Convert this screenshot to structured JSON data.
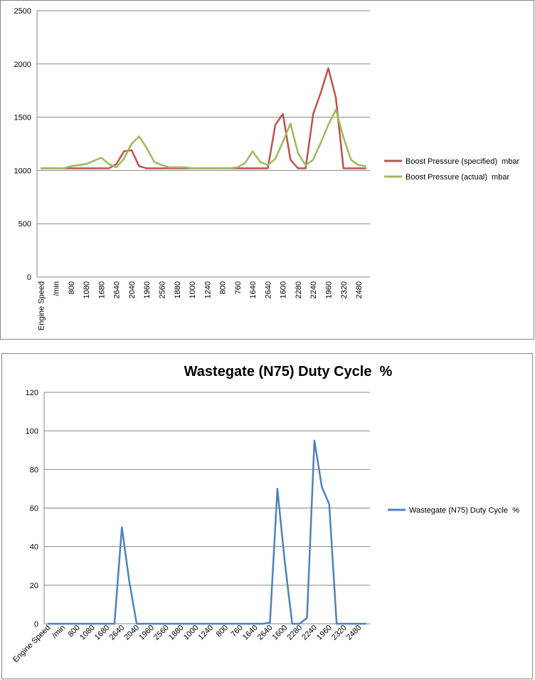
{
  "chart_data": [
    {
      "type": "line",
      "categories": [
        "Engine Speed",
        null,
        "/min",
        null,
        "800",
        null,
        "1080",
        null,
        "1680",
        null,
        "2640",
        null,
        "2040",
        null,
        "1960",
        null,
        "2560",
        null,
        "1880",
        null,
        "1000",
        null,
        "1240",
        null,
        "800",
        null,
        "760",
        null,
        "1640",
        null,
        "2640",
        null,
        "1600",
        null,
        "2280",
        null,
        "2240",
        null,
        "1960",
        null,
        "2320",
        null,
        "2480",
        null
      ],
      "series": [
        {
          "name": "Boost Pressure (specified)  mbar",
          "color": "#c0504d",
          "values": [
            1020,
            1020,
            1020,
            1020,
            1020,
            1020,
            1020,
            1020,
            1020,
            1020,
            1060,
            1180,
            1190,
            1040,
            1020,
            1020,
            1020,
            1020,
            1020,
            1020,
            1020,
            1020,
            1020,
            1020,
            1020,
            1020,
            1020,
            1020,
            1020,
            1020,
            1020,
            1430,
            1530,
            1100,
            1020,
            1020,
            1530,
            1730,
            1960,
            1680,
            1020,
            1020,
            1020,
            1020
          ]
        },
        {
          "name": "Boost Pressure (actual)  mbar",
          "color": "#9bbb59",
          "values": [
            1020,
            1020,
            1020,
            1020,
            1040,
            1050,
            1060,
            1090,
            1120,
            1060,
            1030,
            1110,
            1250,
            1320,
            1210,
            1080,
            1050,
            1030,
            1030,
            1030,
            1020,
            1020,
            1020,
            1020,
            1020,
            1020,
            1030,
            1070,
            1180,
            1080,
            1050,
            1110,
            1270,
            1440,
            1160,
            1050,
            1100,
            1260,
            1430,
            1570,
            1310,
            1100,
            1050,
            1040
          ]
        }
      ],
      "ylim": [
        0,
        2500
      ],
      "yticks": [
        0,
        500,
        1000,
        1500,
        2000,
        2500
      ],
      "grid": true,
      "legend": "right"
    },
    {
      "type": "line",
      "title": "Wastegate (N75) Duty Cycle  %",
      "categories": [
        "Engine Speed",
        null,
        "/min",
        null,
        "800",
        null,
        "1080",
        null,
        "1680",
        null,
        "2640",
        null,
        "2040",
        null,
        "1960",
        null,
        "2560",
        null,
        "1880",
        null,
        "1000",
        null,
        "1240",
        null,
        "800",
        null,
        "760",
        null,
        "1640",
        null,
        "2640",
        null,
        "1600",
        null,
        "2280",
        null,
        "2240",
        null,
        "1960",
        null,
        "2320",
        null,
        "2480",
        null
      ],
      "series": [
        {
          "name": "Wastegate (N75) Duty Cycle  %",
          "color": "#4f81bd",
          "values": [
            0,
            0,
            0,
            0,
            0,
            0,
            0,
            0,
            0,
            0,
            50,
            22,
            0,
            0,
            0,
            0,
            0,
            0,
            0,
            0,
            0,
            0,
            0,
            0,
            0,
            0,
            0,
            0,
            0,
            0,
            0.5,
            70,
            32,
            0,
            0,
            3,
            95,
            71,
            62,
            0,
            0,
            0,
            0,
            0
          ]
        }
      ],
      "ylim": [
        0,
        120
      ],
      "yticks": [
        0,
        20,
        40,
        60,
        80,
        100,
        120
      ],
      "grid": true,
      "legend": "right"
    }
  ]
}
